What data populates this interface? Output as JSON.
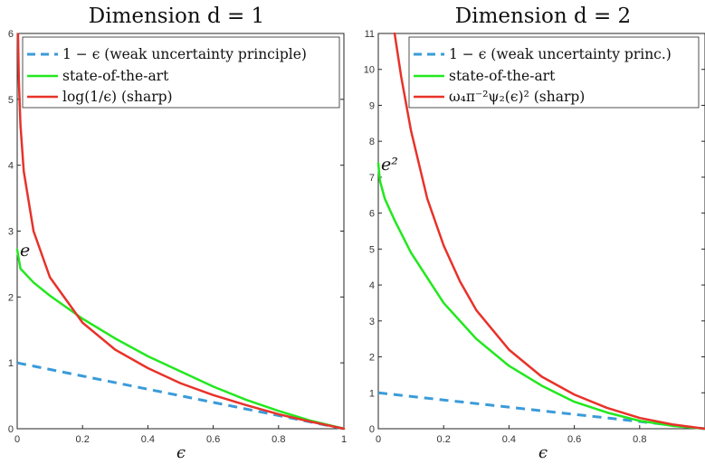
{
  "chart_data": [
    {
      "type": "line",
      "title": "Dimension d = 1",
      "xlabel": "ϵ",
      "ylabel": "",
      "xlim": [
        0,
        1
      ],
      "ylim": [
        0,
        6
      ],
      "xticks": [
        "0",
        "0.2",
        "0.4",
        "0.6",
        "0.8",
        "1"
      ],
      "yticks": [
        "0",
        "1",
        "2",
        "3",
        "4",
        "5",
        "6"
      ],
      "legend_position": "top-right",
      "annotation": {
        "text": "e",
        "x": 0,
        "y": 2.718
      },
      "series": [
        {
          "name": "1 − ϵ (weak uncertainty principle)",
          "color": "#3a9bd9",
          "style": "dashed",
          "x": [
            0,
            0.2,
            0.4,
            0.6,
            0.8,
            1.0
          ],
          "y": [
            1.0,
            0.8,
            0.6,
            0.4,
            0.2,
            0.0
          ]
        },
        {
          "name": "state-of-the-art",
          "color": "#22e81e",
          "style": "solid",
          "x": [
            0,
            0.01,
            0.05,
            0.1,
            0.2,
            0.3,
            0.4,
            0.5,
            0.6,
            0.7,
            0.8,
            0.9,
            1.0
          ],
          "y": [
            2.718,
            2.43,
            2.22,
            2.02,
            1.67,
            1.37,
            1.1,
            0.87,
            0.64,
            0.44,
            0.27,
            0.12,
            0.0
          ]
        },
        {
          "name": "log(1/ϵ) (sharp)",
          "color": "#e8322a",
          "style": "solid",
          "x": [
            0.0025,
            0.005,
            0.01,
            0.02,
            0.05,
            0.1,
            0.2,
            0.3,
            0.4,
            0.5,
            0.6,
            0.7,
            0.8,
            0.9,
            1.0
          ],
          "y": [
            5.99,
            5.3,
            4.61,
            3.91,
            3.0,
            2.3,
            1.61,
            1.2,
            0.92,
            0.69,
            0.51,
            0.36,
            0.22,
            0.105,
            0.0
          ]
        }
      ]
    },
    {
      "type": "line",
      "title": "Dimension d = 2",
      "xlabel": "ϵ",
      "ylabel": "",
      "xlim": [
        0,
        1
      ],
      "ylim": [
        0,
        11
      ],
      "xticks": [
        "0",
        "0.2",
        "0.4",
        "0.6",
        "0.8"
      ],
      "yticks": [
        "0",
        "1",
        "2",
        "3",
        "4",
        "5",
        "6",
        "7",
        "8",
        "9",
        "10",
        "11"
      ],
      "legend_position": "top-right",
      "annotation": {
        "text": "e²",
        "x": 0,
        "y": 7.389
      },
      "series": [
        {
          "name": "1 − ϵ (weak uncertainty princ.)",
          "color": "#3a9bd9",
          "style": "dashed",
          "x": [
            0,
            0.2,
            0.4,
            0.6,
            0.8,
            1.0
          ],
          "y": [
            1.0,
            0.8,
            0.6,
            0.4,
            0.2,
            0.0
          ]
        },
        {
          "name": "state-of-the-art",
          "color": "#22e81e",
          "style": "solid",
          "x": [
            0,
            0.005,
            0.02,
            0.05,
            0.1,
            0.2,
            0.3,
            0.4,
            0.5,
            0.6,
            0.7,
            0.8,
            0.9,
            1.0
          ],
          "y": [
            7.389,
            6.9,
            6.4,
            5.8,
            4.9,
            3.5,
            2.5,
            1.75,
            1.2,
            0.75,
            0.45,
            0.22,
            0.08,
            0.0
          ]
        },
        {
          "name": "ω₄π⁻²ψ₂(ϵ)² (sharp)",
          "color": "#e8322a",
          "style": "solid",
          "x": [
            0.05,
            0.07,
            0.1,
            0.15,
            0.2,
            0.25,
            0.3,
            0.4,
            0.5,
            0.6,
            0.7,
            0.8,
            0.9,
            1.0
          ],
          "y": [
            11.0,
            9.8,
            8.3,
            6.4,
            5.1,
            4.1,
            3.3,
            2.2,
            1.45,
            0.95,
            0.58,
            0.3,
            0.12,
            0.0
          ]
        }
      ]
    }
  ]
}
